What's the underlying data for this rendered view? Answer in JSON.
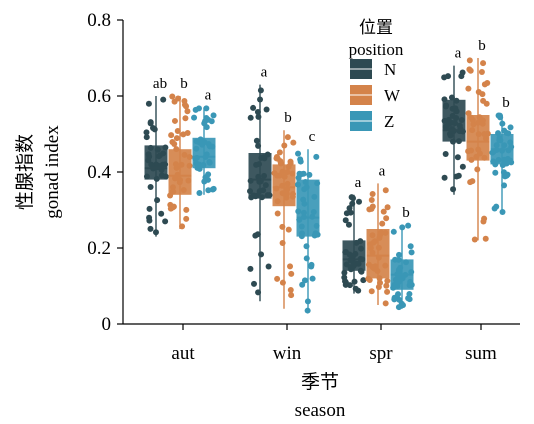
{
  "chart_data": {
    "type": "boxplot",
    "title": "",
    "xlabel_cn": "季节",
    "xlabel_en": "season",
    "ylabel_cn": "性腺指数",
    "ylabel_en": "gonad index",
    "ylim": [
      0,
      0.8
    ],
    "yticks": [
      "0",
      "0.2",
      "0.4",
      "0.6",
      "0.8"
    ],
    "categories": [
      "aut",
      "win",
      "spr",
      "sum"
    ],
    "legend": {
      "title_cn": "位置",
      "title_en": "position",
      "placement": "top-right"
    },
    "series": [
      {
        "name": "N",
        "color": "#2e4a52",
        "boxes": [
          {
            "min": 0.23,
            "q1": 0.38,
            "median": 0.41,
            "q3": 0.47,
            "max": 0.6
          },
          {
            "min": 0.06,
            "q1": 0.33,
            "median": 0.38,
            "q3": 0.45,
            "max": 0.63
          },
          {
            "min": 0.08,
            "q1": 0.14,
            "median": 0.17,
            "q3": 0.22,
            "max": 0.34
          },
          {
            "min": 0.34,
            "q1": 0.48,
            "median": 0.51,
            "q3": 0.59,
            "max": 0.68
          }
        ],
        "significance": [
          "ab",
          "a",
          "a",
          "a"
        ]
      },
      {
        "name": "W",
        "color": "#d4834a",
        "boxes": [
          {
            "min": 0.25,
            "q1": 0.34,
            "median": 0.39,
            "q3": 0.46,
            "max": 0.6
          },
          {
            "min": 0.04,
            "q1": 0.31,
            "median": 0.36,
            "q3": 0.42,
            "max": 0.51
          },
          {
            "min": 0.05,
            "q1": 0.12,
            "median": 0.18,
            "q3": 0.25,
            "max": 0.37
          },
          {
            "min": 0.22,
            "q1": 0.43,
            "median": 0.48,
            "q3": 0.55,
            "max": 0.7
          }
        ],
        "significance": [
          "b",
          "b",
          "a",
          "b"
        ]
      },
      {
        "name": "Z",
        "color": "#3a97b6",
        "boxes": [
          {
            "min": 0.34,
            "q1": 0.41,
            "median": 0.44,
            "q3": 0.49,
            "max": 0.57
          },
          {
            "min": 0.03,
            "q1": 0.23,
            "median": 0.28,
            "q3": 0.38,
            "max": 0.46
          },
          {
            "min": 0.04,
            "q1": 0.09,
            "median": 0.13,
            "q3": 0.17,
            "max": 0.26
          },
          {
            "min": 0.29,
            "q1": 0.42,
            "median": 0.46,
            "q3": 0.5,
            "max": 0.55
          }
        ],
        "significance": [
          "a",
          "c",
          "b",
          "b"
        ]
      }
    ],
    "grid": false
  }
}
